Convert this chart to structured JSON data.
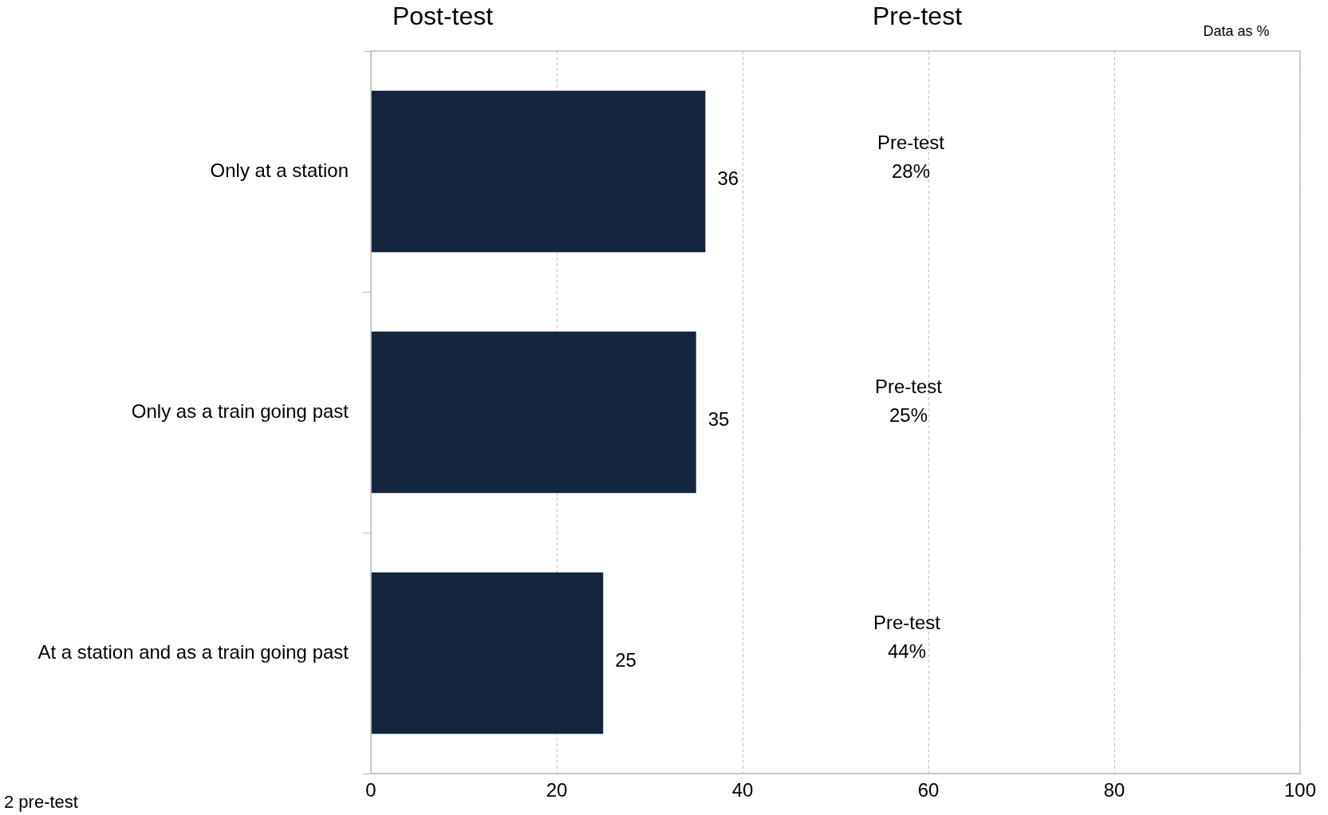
{
  "chart_data": {
    "type": "bar",
    "orientation": "horizontal",
    "categories": [
      "Only at a station",
      "Only as a train going past",
      "At a station and as a train going past"
    ],
    "series": [
      {
        "color": "#14253d",
        "values": [
          36,
          35,
          25
        ]
      }
    ],
    "xlim": [
      0,
      100
    ],
    "xticks": [
      0,
      20,
      40,
      60,
      80,
      100
    ],
    "grid": "x",
    "legend": false,
    "data_labels": true,
    "annotations": [
      "Post-test",
      "Pre-test",
      "Data as %",
      "2 pre-test",
      "Pre-test\n28%",
      "Pre-test\n25%",
      "Pre-test\n44%"
    ]
  }
}
